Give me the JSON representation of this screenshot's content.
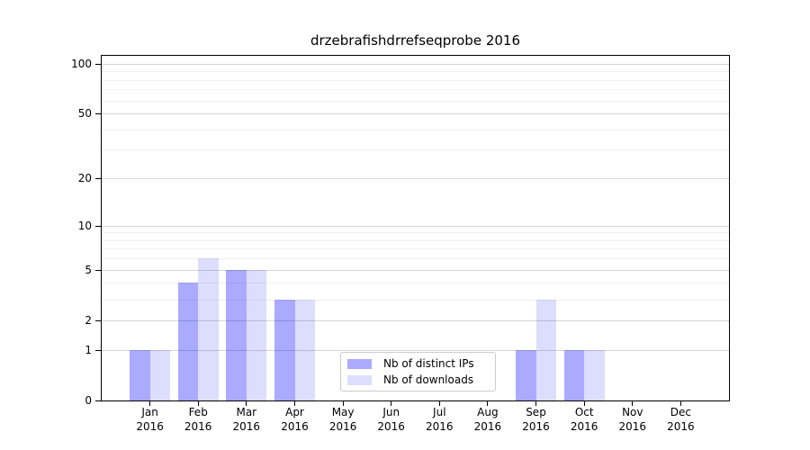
{
  "chart_data": {
    "type": "bar",
    "title": "drzebrafishdrrefseqprobe 2016",
    "year": "2016",
    "categories": [
      "Jan",
      "Feb",
      "Mar",
      "Apr",
      "May",
      "Jun",
      "Jul",
      "Aug",
      "Sep",
      "Oct",
      "Nov",
      "Dec"
    ],
    "series": [
      {
        "name": "Nb of distinct IPs",
        "color": "#aaaaff",
        "values": [
          1,
          4,
          5,
          3,
          0,
          0,
          0,
          0,
          1,
          1,
          0,
          0
        ]
      },
      {
        "name": "Nb of downloads",
        "color": "#ddddff",
        "values": [
          1,
          6,
          5,
          3,
          0,
          0,
          0,
          0,
          3,
          1,
          0,
          0
        ]
      }
    ],
    "yscale": "log1p",
    "ylim": [
      0,
      110
    ],
    "y_major_ticks": [
      0,
      1,
      2,
      5,
      10,
      20,
      50,
      100
    ],
    "y_minor_gridlines": [
      3,
      4,
      6,
      7,
      8,
      9,
      30,
      40,
      60,
      70,
      80,
      90
    ],
    "grid": "horizontal",
    "legend_position": "lower-center-inside",
    "colors": {
      "bar_distinct_ips": "#aaaaff",
      "bar_downloads": "#ddddff",
      "major_grid": "rgba(0,0,0,0.16)",
      "minor_grid": "rgba(0,0,0,0.06)",
      "spine": "#000000",
      "legend_border": "#cccccc"
    }
  }
}
